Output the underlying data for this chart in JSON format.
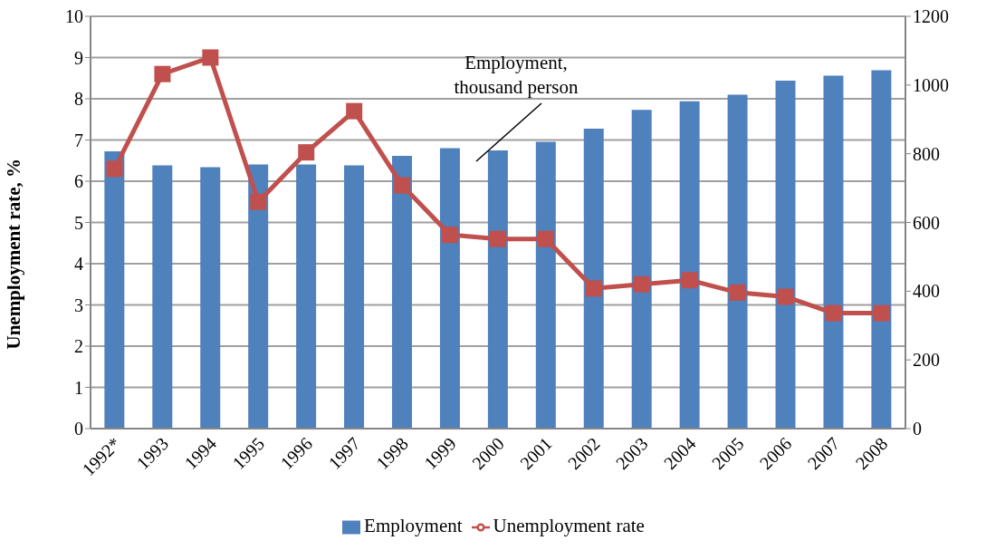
{
  "chart_data": {
    "type": "bar",
    "ylabel": "Unemployment rate, %",
    "categories": [
      "1992*",
      "1993",
      "1994",
      "1995",
      "1996",
      "1997",
      "1998",
      "1999",
      "2000",
      "2001",
      "2002",
      "2003",
      "2004",
      "2005",
      "2006",
      "2007",
      "2008"
    ],
    "series": [
      {
        "name": "Employment",
        "axis": "y2",
        "color": "#4f81bd",
        "values": [
          807,
          766,
          761,
          769,
          769,
          766,
          794,
          816,
          810,
          835,
          873,
          928,
          953,
          972,
          1013,
          1027,
          1043
        ]
      },
      {
        "name": "Unemployment rate",
        "type": "line",
        "color": "#c0504d",
        "marker": "square",
        "values": [
          6.3,
          8.6,
          9.0,
          5.5,
          6.7,
          7.7,
          5.9,
          4.7,
          4.6,
          4.6,
          3.4,
          3.5,
          3.6,
          3.3,
          3.2,
          2.8,
          2.8
        ]
      }
    ],
    "ylim": [
      0,
      10
    ],
    "yticks": [
      0,
      1,
      2,
      3,
      4,
      5,
      6,
      7,
      8,
      9,
      10
    ],
    "y2lim": [
      0,
      1200
    ],
    "y2ticks": [
      0,
      200,
      400,
      600,
      800,
      1000,
      1200
    ],
    "grid": "y",
    "legend": "bottom",
    "annotations": [
      "Employment,\nthousand person"
    ]
  }
}
